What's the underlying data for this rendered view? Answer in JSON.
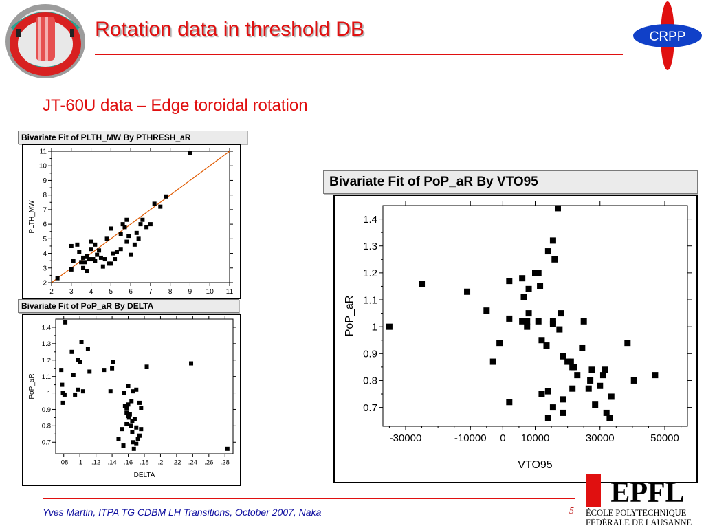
{
  "slide": {
    "title": "Rotation data in threshold DB",
    "subtitle": "JT-60U data – Edge toroidal rotation",
    "footer": "Yves Martin, ITPA TG CDBM LH Transitions, October 2007, Naka",
    "page_number": "5",
    "logos": {
      "crpp_text": "CRPP",
      "epfl_text": "EPFL",
      "epfl_subtext_1": "ÉCOLE POLYTECHNIQUE",
      "epfl_subtext_2": "FÉDÉRALE DE LAUSANNE"
    },
    "colors": {
      "title": "#e01010",
      "footer": "#1010a0",
      "fit_line": "#e05a00"
    }
  },
  "chart_data": [
    {
      "type": "scatter",
      "title": "Bivariate Fit of PLTH_MW By PTHRESH_aR",
      "xlabel": "",
      "ylabel": "PLTH_MW",
      "xlim": [
        2,
        11
      ],
      "ylim": [
        2,
        11
      ],
      "xticks": [
        "2",
        "3",
        "4",
        "5",
        "6",
        "7",
        "8",
        "9",
        "10",
        "11"
      ],
      "yticks": [
        "2",
        "3",
        "4",
        "5",
        "6",
        "7",
        "8",
        "9",
        "10",
        "11"
      ],
      "fit_line": [
        [
          2,
          2
        ],
        [
          11,
          11
        ]
      ],
      "points": [
        [
          2.3,
          2.3
        ],
        [
          3.0,
          2.9
        ],
        [
          3.1,
          3.5
        ],
        [
          3.3,
          4.6
        ],
        [
          3.5,
          3.4
        ],
        [
          3.6,
          3.7
        ],
        [
          3.8,
          3.8
        ],
        [
          3.0,
          4.5
        ],
        [
          3.4,
          4.1
        ],
        [
          3.7,
          3.4
        ],
        [
          3.9,
          3.6
        ],
        [
          4.0,
          4.8
        ],
        [
          4.2,
          3.5
        ],
        [
          4.4,
          4.2
        ],
        [
          4.5,
          3.7
        ],
        [
          4.6,
          3.1
        ],
        [
          4.7,
          3.6
        ],
        [
          4.8,
          5.0
        ],
        [
          4.2,
          4.6
        ],
        [
          4.0,
          4.3
        ],
        [
          3.6,
          3.0
        ],
        [
          3.8,
          2.8
        ],
        [
          5.0,
          5.7
        ],
        [
          5.2,
          3.6
        ],
        [
          5.3,
          4.1
        ],
        [
          5.5,
          4.3
        ],
        [
          5.7,
          5.8
        ],
        [
          5.8,
          4.8
        ],
        [
          6.0,
          3.9
        ],
        [
          6.2,
          4.6
        ],
        [
          6.3,
          5.4
        ],
        [
          6.4,
          5.0
        ],
        [
          6.5,
          6.0
        ],
        [
          6.8,
          5.8
        ],
        [
          7.0,
          6.0
        ],
        [
          7.2,
          7.4
        ],
        [
          7.5,
          7.2
        ],
        [
          7.8,
          7.9
        ],
        [
          9.0,
          10.9
        ],
        [
          5.5,
          5.3
        ],
        [
          5.9,
          5.2
        ],
        [
          6.6,
          6.3
        ],
        [
          4.3,
          3.9
        ],
        [
          4.9,
          3.3
        ],
        [
          5.1,
          4.0
        ],
        [
          4.1,
          3.6
        ],
        [
          5.6,
          6.0
        ],
        [
          5.0,
          3.3
        ],
        [
          5.8,
          6.3
        ]
      ]
    },
    {
      "type": "scatter",
      "title": "Bivariate Fit of PoP_aR By DELTA",
      "xlabel": "DELTA",
      "ylabel": "PoP_aR",
      "xlim": [
        0.07,
        0.29
      ],
      "ylim": [
        0.63,
        1.45
      ],
      "xticks": [
        ".08",
        ".1",
        ".12",
        ".14",
        ".16",
        ".18",
        ".2",
        ".22",
        ".24",
        ".26",
        ".28"
      ],
      "yticks": [
        "0.7",
        "0.8",
        "0.9",
        "1",
        "1.1",
        "1.2",
        "1.3",
        "1.4"
      ],
      "points": [
        [
          0.082,
          1.43
        ],
        [
          0.077,
          1.14
        ],
        [
          0.078,
          1.05
        ],
        [
          0.079,
          1.0
        ],
        [
          0.079,
          0.94
        ],
        [
          0.081,
          0.99
        ],
        [
          0.09,
          1.25
        ],
        [
          0.092,
          1.11
        ],
        [
          0.094,
          0.99
        ],
        [
          0.098,
          1.02
        ],
        [
          0.098,
          1.2
        ],
        [
          0.1,
          1.19
        ],
        [
          0.102,
          1.31
        ],
        [
          0.104,
          1.01
        ],
        [
          0.11,
          1.27
        ],
        [
          0.112,
          1.13
        ],
        [
          0.13,
          1.14
        ],
        [
          0.138,
          1.01
        ],
        [
          0.14,
          1.15
        ],
        [
          0.141,
          1.19
        ],
        [
          0.148,
          0.72
        ],
        [
          0.152,
          0.78
        ],
        [
          0.155,
          1.0
        ],
        [
          0.156,
          0.92
        ],
        [
          0.158,
          0.81
        ],
        [
          0.16,
          0.86
        ],
        [
          0.161,
          0.85
        ],
        [
          0.163,
          0.8
        ],
        [
          0.165,
          0.83
        ],
        [
          0.166,
          0.7
        ],
        [
          0.168,
          0.84
        ],
        [
          0.17,
          0.79
        ],
        [
          0.172,
          0.72
        ],
        [
          0.174,
          0.74
        ],
        [
          0.176,
          0.78
        ],
        [
          0.154,
          0.68
        ],
        [
          0.158,
          0.88
        ],
        [
          0.16,
          0.93
        ],
        [
          0.162,
          0.87
        ],
        [
          0.164,
          0.95
        ],
        [
          0.166,
          1.01
        ],
        [
          0.16,
          1.04
        ],
        [
          0.167,
          0.66
        ],
        [
          0.17,
          0.69
        ],
        [
          0.174,
          0.94
        ],
        [
          0.176,
          0.91
        ],
        [
          0.17,
          1.02
        ],
        [
          0.165,
          0.76
        ],
        [
          0.158,
          0.91
        ],
        [
          0.183,
          1.16
        ],
        [
          0.238,
          1.18
        ],
        [
          0.283,
          0.66
        ]
      ]
    },
    {
      "type": "scatter",
      "title": "Bivariate Fit of PoP_aR By VTO95",
      "xlabel": "VTO95",
      "ylabel": "PoP_aR",
      "xlim": [
        -37000,
        57000
      ],
      "ylim": [
        0.63,
        1.45
      ],
      "xticks": [
        -30000,
        -10000,
        0,
        10000,
        30000,
        50000
      ],
      "xtick_labels": [
        "-30000",
        "-10000",
        "0",
        "10000",
        "30000",
        "50000"
      ],
      "yticks": [
        "0.7",
        "0.8",
        "0.9",
        "1",
        "1.1",
        "1.2",
        "1.3",
        "1.4"
      ],
      "points": [
        [
          -35000,
          1.0
        ],
        [
          -25000,
          1.16
        ],
        [
          -11000,
          1.13
        ],
        [
          -5000,
          1.06
        ],
        [
          -3000,
          0.87
        ],
        [
          -1000,
          0.94
        ],
        [
          2000,
          1.17
        ],
        [
          2000,
          1.03
        ],
        [
          2000,
          0.72
        ],
        [
          6000,
          1.18
        ],
        [
          6000,
          1.02
        ],
        [
          6500,
          1.11
        ],
        [
          7500,
          1.0
        ],
        [
          7500,
          1.02
        ],
        [
          8000,
          1.05
        ],
        [
          8000,
          1.14
        ],
        [
          10000,
          1.2
        ],
        [
          11000,
          1.2
        ],
        [
          11000,
          1.02
        ],
        [
          11500,
          1.15
        ],
        [
          12000,
          0.95
        ],
        [
          12000,
          0.75
        ],
        [
          13500,
          0.93
        ],
        [
          14000,
          0.76
        ],
        [
          14000,
          1.28
        ],
        [
          14000,
          0.66
        ],
        [
          15500,
          1.32
        ],
        [
          16000,
          1.25
        ],
        [
          15500,
          1.02
        ],
        [
          15500,
          1.01
        ],
        [
          15500,
          0.7
        ],
        [
          17000,
          1.44
        ],
        [
          17500,
          0.99
        ],
        [
          18000,
          1.05
        ],
        [
          18500,
          0.89
        ],
        [
          18500,
          0.73
        ],
        [
          18500,
          0.68
        ],
        [
          20000,
          0.87
        ],
        [
          21000,
          0.87
        ],
        [
          21500,
          0.85
        ],
        [
          21500,
          0.77
        ],
        [
          22000,
          0.85
        ],
        [
          23000,
          0.82
        ],
        [
          24500,
          0.92
        ],
        [
          25000,
          1.02
        ],
        [
          26500,
          0.77
        ],
        [
          27000,
          0.8
        ],
        [
          27500,
          0.84
        ],
        [
          28500,
          0.71
        ],
        [
          30000,
          0.78
        ],
        [
          31000,
          0.82
        ],
        [
          31500,
          0.84
        ],
        [
          32000,
          0.68
        ],
        [
          33000,
          0.66
        ],
        [
          33500,
          0.74
        ],
        [
          38500,
          0.94
        ],
        [
          40500,
          0.8
        ],
        [
          47000,
          0.82
        ]
      ]
    }
  ]
}
